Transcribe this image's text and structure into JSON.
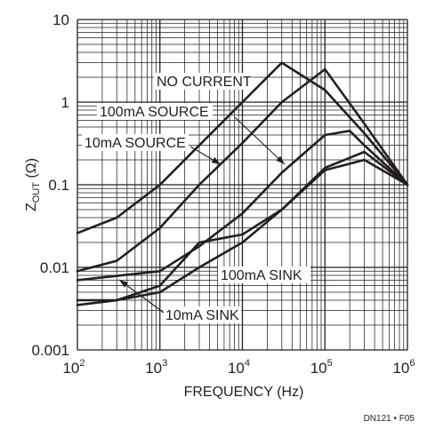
{
  "chart_data": {
    "type": "line",
    "title": "",
    "xlabel": "FREQUENCY (Hz)",
    "ylabel_main": "Z",
    "ylabel_sub": "OUT",
    "ylabel_unit": " (Ω)",
    "x_scale": "log",
    "y_scale": "log",
    "xlim": [
      100,
      1000000
    ],
    "ylim": [
      0.001,
      10
    ],
    "grid": true,
    "x_ticks": [
      {
        "value": 100,
        "base": "10",
        "exp": "2"
      },
      {
        "value": 1000,
        "base": "10",
        "exp": "3"
      },
      {
        "value": 10000,
        "base": "10",
        "exp": "4"
      },
      {
        "value": 100000,
        "base": "10",
        "exp": "5"
      },
      {
        "value": 1000000,
        "base": "10",
        "exp": "6"
      }
    ],
    "y_ticks": [
      {
        "value": 10,
        "label": "10"
      },
      {
        "value": 1,
        "label": "1"
      },
      {
        "value": 0.1,
        "label": "0.1"
      },
      {
        "value": 0.01,
        "label": "0.01"
      },
      {
        "value": 0.001,
        "label": "0.001"
      }
    ],
    "series": [
      {
        "name": "NO CURRENT",
        "x": [
          100,
          300,
          1000,
          3000,
          10000,
          30000,
          100000,
          300000,
          1000000
        ],
        "y": [
          0.026,
          0.04,
          0.1,
          0.3,
          1.0,
          3.0,
          1.4,
          0.42,
          0.1
        ]
      },
      {
        "name": "100mA SOURCE",
        "x": [
          100,
          300,
          1000,
          3000,
          10000,
          30000,
          100000,
          300000,
          1000000
        ],
        "y": [
          0.009,
          0.012,
          0.03,
          0.1,
          0.32,
          1.0,
          2.5,
          0.55,
          0.1
        ]
      },
      {
        "name": "10mA SOURCE",
        "x": [
          100,
          1000,
          3000,
          10000,
          30000,
          100000,
          200000,
          300000,
          1000000
        ],
        "y": [
          0.007,
          0.009,
          0.018,
          0.045,
          0.14,
          0.4,
          0.45,
          0.3,
          0.1
        ]
      },
      {
        "name": "100mA SINK",
        "x": [
          100,
          300,
          1000,
          3000,
          10000,
          30000,
          100000,
          300000,
          1000000
        ],
        "y": [
          0.0035,
          0.004,
          0.006,
          0.02,
          0.025,
          0.05,
          0.16,
          0.25,
          0.1
        ]
      },
      {
        "name": "10mA SINK",
        "x": [
          100,
          300,
          1000,
          3000,
          10000,
          30000,
          100000,
          300000,
          1000000
        ],
        "y": [
          0.004,
          0.004,
          0.005,
          0.01,
          0.02,
          0.05,
          0.15,
          0.2,
          0.1
        ]
      }
    ],
    "annotations": [
      {
        "text": "NO CURRENT",
        "series": "NO CURRENT"
      },
      {
        "text": "100mA SOURCE",
        "series": "100mA SOURCE"
      },
      {
        "text": "10mA SOURCE",
        "series": "10mA SOURCE"
      },
      {
        "text": "100mA SINK",
        "series": "100mA SINK"
      },
      {
        "text": "10mA SINK",
        "series": "10mA SINK"
      }
    ],
    "figure_id": "DN121 • F05"
  }
}
